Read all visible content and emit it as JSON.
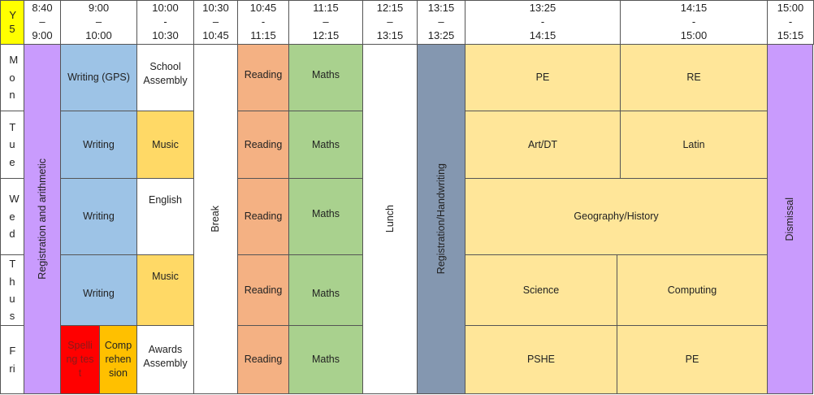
{
  "corner": {
    "label": "Y5",
    "color": "#ffff00"
  },
  "headers": [
    {
      "start": "8:40",
      "sep": "–",
      "end": "9:00"
    },
    {
      "start": "9:00",
      "sep": "–",
      "end": "10:00"
    },
    {
      "start": "10:00",
      "sep": "-",
      "end": "10:30"
    },
    {
      "start": "10:30",
      "sep": "–",
      "end": "10:45"
    },
    {
      "start": "10:45",
      "sep": "-",
      "end": "11:15"
    },
    {
      "start": "11:15",
      "sep": "–",
      "end": "12:15"
    },
    {
      "start": "12:15",
      "sep": "–",
      "end": "13:15"
    },
    {
      "start": "13:15",
      "sep": "–",
      "end": "13:25"
    },
    {
      "start": "13:25",
      "sep": "-",
      "end": "14:15"
    },
    {
      "start": "14:15",
      "sep": "-",
      "end": "15:00"
    },
    {
      "start": "15:00",
      "sep": "-",
      "end": "15:15"
    }
  ],
  "days": [
    "Mon",
    "Tue",
    "Wed",
    "Thus",
    "Fri"
  ],
  "spanning": {
    "registration_arithmetic": "Registration and arithmetic",
    "break": "Break",
    "lunch": "Lunch",
    "registration_handwriting": "Registration/Handwriting",
    "dismissal": "Dismissal"
  },
  "mon": {
    "writing": "Writing (GPS)",
    "assembly": "School Assembly",
    "reading": "Reading",
    "maths": "Maths",
    "pm1": "PE",
    "pm2": "RE"
  },
  "tue": {
    "writing": "Writing",
    "music": "Music",
    "reading": "Reading",
    "maths": "Maths",
    "pm1": "Art/DT",
    "pm2": "Latin"
  },
  "wed": {
    "writing": "Writing",
    "english": "English",
    "reading": "Reading",
    "maths": "Maths",
    "pm": "Geography/History"
  },
  "thu": {
    "writing": "Writing",
    "music": "Music",
    "reading": "Reading",
    "maths": "Maths",
    "pm1": "Science",
    "pm2": "Computing"
  },
  "fri": {
    "spelling": "Spelling test",
    "comprehension": "Comprehension",
    "assembly": "Awards Assembly",
    "reading": "Reading",
    "maths": "Maths",
    "pm1": "PSHE",
    "pm2": "PE"
  },
  "colors": {
    "purple": "#c99bfd",
    "blue": "#9dc3e6",
    "yellow": "#ffd966",
    "salmon": "#f4b183",
    "green": "#a9d18e",
    "slate": "#8497b0",
    "pale_yellow": "#ffe699",
    "red": "#ff0000",
    "amber": "#ffc000"
  }
}
